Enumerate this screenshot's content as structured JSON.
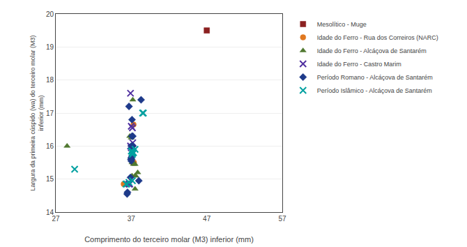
{
  "chart_data": {
    "type": "scatter",
    "xlabel": "Comprimento do terceiro molar (M3) inferior (mm)",
    "ylabel": "Largura da primeira cúspido (wa) do terceiro molar (M3)\ninferior (mm)",
    "xlim": [
      27,
      57
    ],
    "ylim": [
      14,
      20
    ],
    "xticks": [
      27,
      37,
      47,
      57
    ],
    "yticks": [
      14,
      15,
      16,
      17,
      18,
      19,
      20
    ],
    "grid": "y",
    "legend": "right",
    "series": [
      {
        "name": "Mesolítico - Muge",
        "color": "#8B2020",
        "marker": "square",
        "x": [
          47.0
        ],
        "values": [
          19.5
        ]
      },
      {
        "name": "Idade do Ferro - Rua dos Correiros (NARC)",
        "color": "#E07820",
        "marker": "circle",
        "x": [
          36.0,
          36.5,
          37.2,
          37.3,
          37.35
        ],
        "values": [
          14.85,
          14.85,
          15.5,
          16.65,
          15.5
        ]
      },
      {
        "name": "Idade do Ferro - Alcáçova de Santarém",
        "color": "#507830",
        "marker": "triangle-up",
        "x": [
          28.5,
          36.8,
          37.0,
          37.1,
          37.1,
          37.2,
          37.3,
          37.5,
          37.5,
          37.6,
          37.5,
          37.85
        ],
        "values": [
          16.0,
          16.3,
          16.25,
          15.5,
          15.1,
          17.4,
          15.45,
          15.45,
          15.1,
          15.1,
          14.7,
          15.2
        ]
      },
      {
        "name": "Idade do Ferro - Castro Marim",
        "color": "#5030A0",
        "marker": "x",
        "x": [
          36.9,
          37.0,
          37.15,
          37.2,
          36.9,
          37.0,
          36.8,
          36.7
        ],
        "values": [
          17.6,
          16.6,
          16.55,
          16.1,
          16.0,
          15.95,
          14.85,
          14.85
        ]
      },
      {
        "name": "Período Romano - Alcáçova de Santarém",
        "color": "#1E3A8A",
        "marker": "diamond",
        "x": [
          36.7,
          37.1,
          37.2,
          37.1,
          37.2,
          37.1,
          37.0,
          37.1,
          37.0,
          37.05,
          36.95,
          37.0,
          36.9,
          38.0,
          36.5,
          36.45,
          38.3
        ],
        "values": [
          17.2,
          16.8,
          16.3,
          16.3,
          16.0,
          16.0,
          16.0,
          15.7,
          15.65,
          15.6,
          15.6,
          15.55,
          15.05,
          14.95,
          14.6,
          14.55,
          17.4
        ]
      },
      {
        "name": "Período Islâmico - Alcáçova de Santarém",
        "color": "#00A0A0",
        "marker": "x",
        "x": [
          29.5,
          36.3,
          36.4,
          36.7,
          37.0,
          37.1,
          37.15,
          37.15,
          37.15,
          37.2,
          37.3,
          37.5,
          38.5,
          38.6
        ],
        "values": [
          15.3,
          14.85,
          14.85,
          14.9,
          15.85,
          15.85,
          15.8,
          15.75,
          14.95,
          15.8,
          15.8,
          15.9,
          17.0,
          17.0
        ]
      }
    ]
  }
}
